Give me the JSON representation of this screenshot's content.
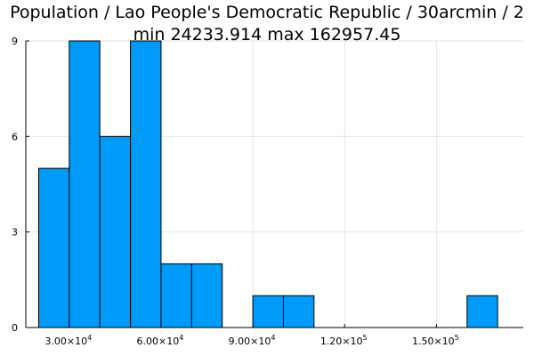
{
  "chart_data": {
    "type": "bar",
    "subtype": "histogram",
    "title_line1": "Population / Lao People's Democratic Republic / 30arcmin / 2",
    "title_line2": "min 24233.914  max 162957.45",
    "bin_width": 10000,
    "bins": [
      {
        "x0": 20000,
        "x1": 30000,
        "count": 5
      },
      {
        "x0": 30000,
        "x1": 40000,
        "count": 9
      },
      {
        "x0": 40000,
        "x1": 50000,
        "count": 6
      },
      {
        "x0": 50000,
        "x1": 60000,
        "count": 9
      },
      {
        "x0": 60000,
        "x1": 70000,
        "count": 2
      },
      {
        "x0": 70000,
        "x1": 80000,
        "count": 2
      },
      {
        "x0": 80000,
        "x1": 90000,
        "count": 0
      },
      {
        "x0": 90000,
        "x1": 100000,
        "count": 1
      },
      {
        "x0": 100000,
        "x1": 110000,
        "count": 1
      },
      {
        "x0": 110000,
        "x1": 120000,
        "count": 0
      },
      {
        "x0": 120000,
        "x1": 130000,
        "count": 0
      },
      {
        "x0": 130000,
        "x1": 140000,
        "count": 0
      },
      {
        "x0": 140000,
        "x1": 150000,
        "count": 0
      },
      {
        "x0": 150000,
        "x1": 160000,
        "count": 0
      },
      {
        "x0": 160000,
        "x1": 170000,
        "count": 1
      }
    ],
    "xlim": [
      15800,
      178400
    ],
    "ylim": [
      0,
      9
    ],
    "x_ticks": [
      {
        "value": 30000,
        "mantissa": "3.00×10",
        "exp": "4"
      },
      {
        "value": 60000,
        "mantissa": "6.00×10",
        "exp": "4"
      },
      {
        "value": 90000,
        "mantissa": "9.00×10",
        "exp": "4"
      },
      {
        "value": 120000,
        "mantissa": "1.20×10",
        "exp": "5"
      },
      {
        "value": 150000,
        "mantissa": "1.50×10",
        "exp": "5"
      }
    ],
    "y_ticks": [
      {
        "value": 0,
        "label": "0"
      },
      {
        "value": 3,
        "label": "3"
      },
      {
        "value": 6,
        "label": "6"
      },
      {
        "value": 9,
        "label": "9"
      }
    ],
    "bar_color": "#009af9",
    "grid": true,
    "legend": false
  }
}
